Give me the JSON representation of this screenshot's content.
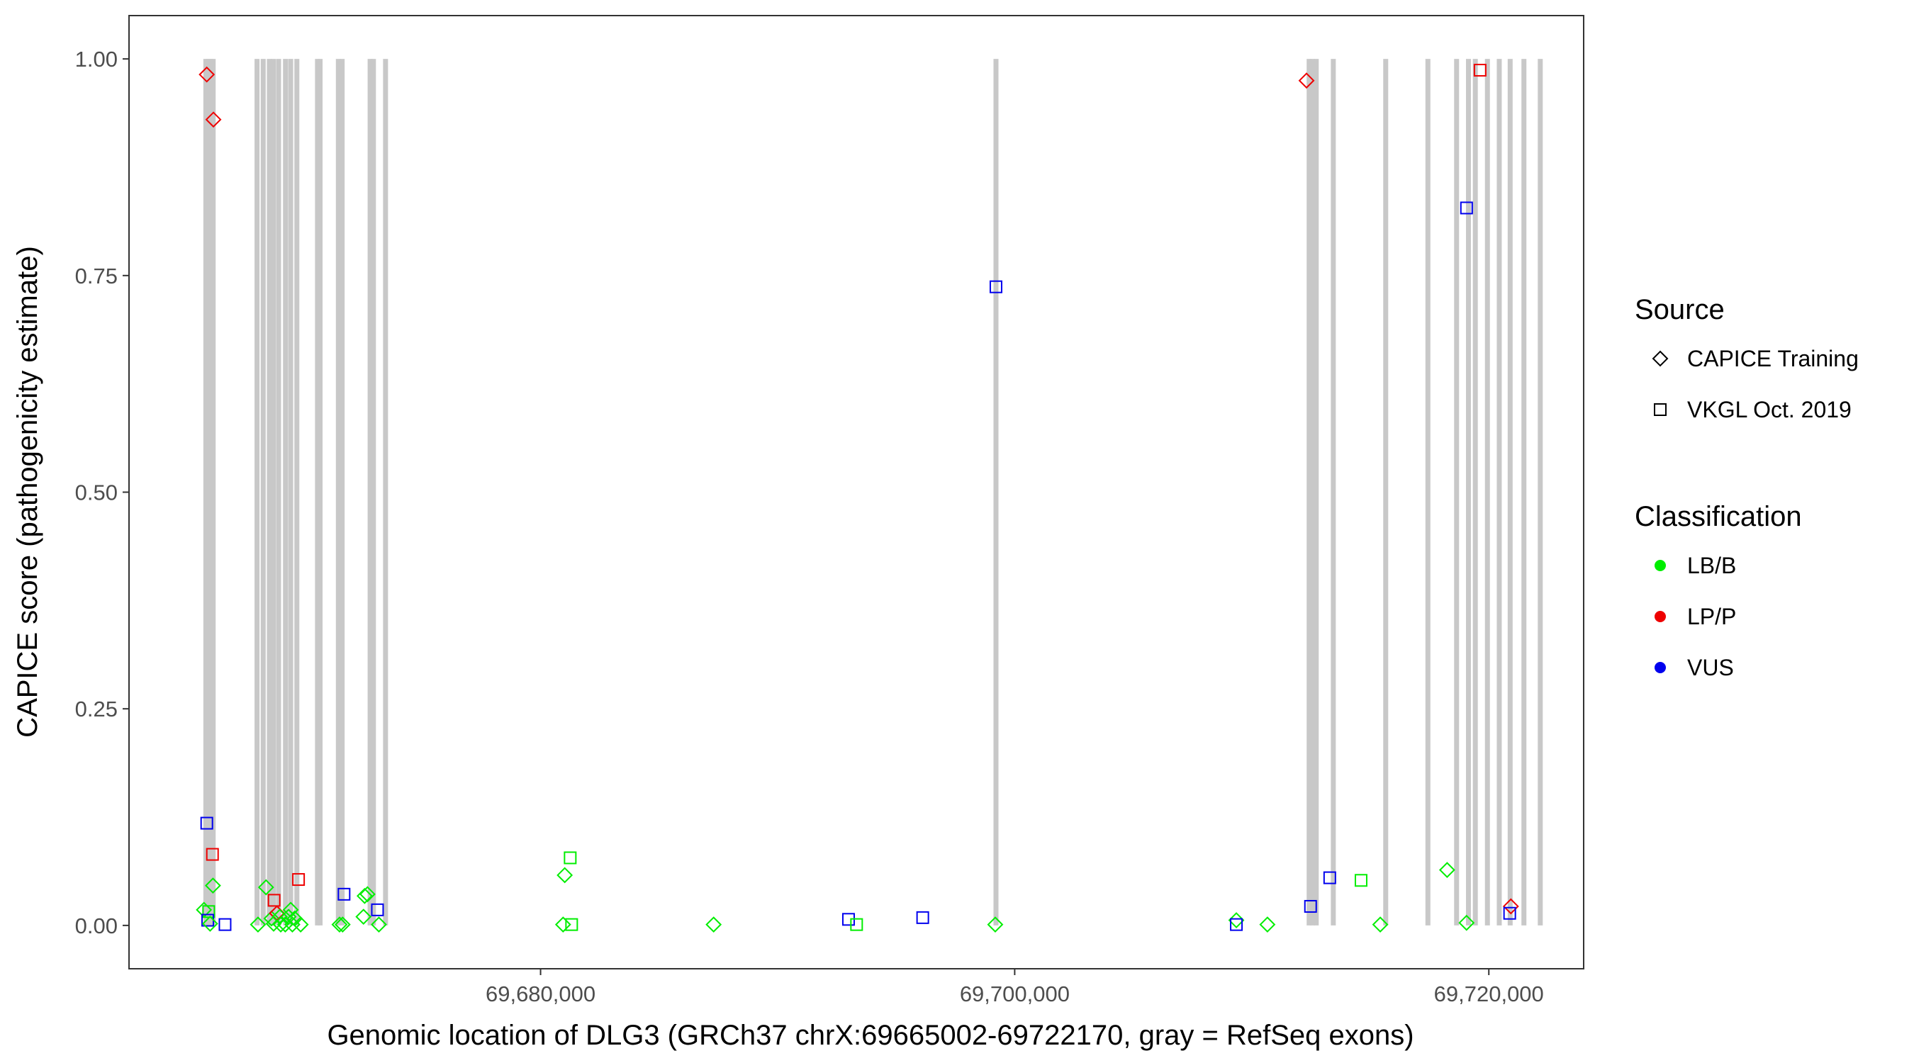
{
  "chart_data": {
    "type": "scatter",
    "title": "",
    "xlabel": "Genomic location of DLG3 (GRCh37 chrX:69665002-69722170, gray = RefSeq exons)",
    "ylabel": "CAPICE score (pathogenicity estimate)",
    "xlim": [
      69662640,
      69724000
    ],
    "ylim": [
      -0.05,
      1.05
    ],
    "x_ticks": [
      69680000,
      69700000,
      69720000
    ],
    "x_tick_labels": [
      "69,680,000",
      "69,700,000",
      "69,720,000"
    ],
    "y_ticks": [
      0,
      0.25,
      0.5,
      0.75,
      1.0
    ],
    "y_tick_labels": [
      "0.00",
      "0.25",
      "0.50",
      "0.75",
      "1.00"
    ],
    "grid": false,
    "legend_position": "right",
    "exons": [
      69665880,
      69665990,
      69666080,
      69666190,
      69668040,
      69668300,
      69668560,
      69668730,
      69668950,
      69669240,
      69669460,
      69669720,
      69670590,
      69670700,
      69671470,
      69671630,
      69672810,
      69672950,
      69673460,
      69699210,
      69712420,
      69712560,
      69712720,
      69713440,
      69715650,
      69717430,
      69718640,
      69719140,
      69719430,
      69719940,
      69720440,
      69720900,
      69721480,
      69722170
    ],
    "legend": {
      "source": {
        "title": "Source",
        "items": [
          {
            "label": "CAPICE Training",
            "shape": "diamond"
          },
          {
            "label": "VKGL Oct. 2019",
            "shape": "square"
          }
        ]
      },
      "classification": {
        "title": "Classification",
        "items": [
          {
            "label": "LB/B",
            "color": "#00ee00"
          },
          {
            "label": "LP/P",
            "color": "#ee0000"
          },
          {
            "label": "VUS",
            "color": "#0000ee"
          }
        ]
      }
    },
    "points": [
      {
        "x": 69665920,
        "y": 0.982,
        "shape": "diamond",
        "class": "LP/P"
      },
      {
        "x": 69666200,
        "y": 0.93,
        "shape": "diamond",
        "class": "LP/P"
      },
      {
        "x": 69665920,
        "y": 0.118,
        "shape": "square",
        "class": "VUS"
      },
      {
        "x": 69666160,
        "y": 0.082,
        "shape": "square",
        "class": "LP/P"
      },
      {
        "x": 69666180,
        "y": 0.046,
        "shape": "diamond",
        "class": "LB/B"
      },
      {
        "x": 69665800,
        "y": 0.018,
        "shape": "diamond",
        "class": "LB/B"
      },
      {
        "x": 69666000,
        "y": 0.016,
        "shape": "square",
        "class": "LB/B"
      },
      {
        "x": 69665960,
        "y": 0.006,
        "shape": "square",
        "class": "VUS"
      },
      {
        "x": 69666060,
        "y": 0.002,
        "shape": "diamond",
        "class": "LB/B"
      },
      {
        "x": 69666690,
        "y": 0.001,
        "shape": "square",
        "class": "VUS"
      },
      {
        "x": 69668080,
        "y": 0.001,
        "shape": "diamond",
        "class": "LB/B"
      },
      {
        "x": 69668420,
        "y": 0.044,
        "shape": "diamond",
        "class": "LB/B"
      },
      {
        "x": 69668760,
        "y": 0.029,
        "shape": "square",
        "class": "LP/P"
      },
      {
        "x": 69668650,
        "y": 0.008,
        "shape": "diamond",
        "class": "LB/B"
      },
      {
        "x": 69668740,
        "y": 0.002,
        "shape": "diamond",
        "class": "LB/B"
      },
      {
        "x": 69668880,
        "y": 0.014,
        "shape": "diamond",
        "class": "LP/P"
      },
      {
        "x": 69669000,
        "y": 0.01,
        "shape": "diamond",
        "class": "LB/B"
      },
      {
        "x": 69669040,
        "y": 0.001,
        "shape": "diamond",
        "class": "LB/B"
      },
      {
        "x": 69669230,
        "y": 0.001,
        "shape": "diamond",
        "class": "LB/B"
      },
      {
        "x": 69669370,
        "y": 0.01,
        "shape": "diamond",
        "class": "LB/B"
      },
      {
        "x": 69669460,
        "y": 0.018,
        "shape": "diamond",
        "class": "LB/B"
      },
      {
        "x": 69669530,
        "y": 0.001,
        "shape": "diamond",
        "class": "LB/B"
      },
      {
        "x": 69669630,
        "y": 0.008,
        "shape": "diamond",
        "class": "LB/B"
      },
      {
        "x": 69669790,
        "y": 0.053,
        "shape": "square",
        "class": "LP/P"
      },
      {
        "x": 69669880,
        "y": 0.001,
        "shape": "diamond",
        "class": "LB/B"
      },
      {
        "x": 69671520,
        "y": 0.001,
        "shape": "diamond",
        "class": "LB/B"
      },
      {
        "x": 69671650,
        "y": 0.001,
        "shape": "diamond",
        "class": "LB/B"
      },
      {
        "x": 69671710,
        "y": 0.036,
        "shape": "square",
        "class": "VUS"
      },
      {
        "x": 69672580,
        "y": 0.034,
        "shape": "diamond",
        "class": "LB/B"
      },
      {
        "x": 69672700,
        "y": 0.036,
        "shape": "diamond",
        "class": "LB/B"
      },
      {
        "x": 69672530,
        "y": 0.01,
        "shape": "diamond",
        "class": "LB/B"
      },
      {
        "x": 69673120,
        "y": 0.018,
        "shape": "square",
        "class": "VUS"
      },
      {
        "x": 69673180,
        "y": 0.001,
        "shape": "diamond",
        "class": "LB/B"
      },
      {
        "x": 69681020,
        "y": 0.058,
        "shape": "diamond",
        "class": "LB/B"
      },
      {
        "x": 69681250,
        "y": 0.078,
        "shape": "square",
        "class": "LB/B"
      },
      {
        "x": 69680950,
        "y": 0.001,
        "shape": "diamond",
        "class": "LB/B"
      },
      {
        "x": 69681310,
        "y": 0.001,
        "shape": "square",
        "class": "LB/B"
      },
      {
        "x": 69687300,
        "y": 0.001,
        "shape": "diamond",
        "class": "LB/B"
      },
      {
        "x": 69692990,
        "y": 0.007,
        "shape": "square",
        "class": "VUS"
      },
      {
        "x": 69693330,
        "y": 0.001,
        "shape": "square",
        "class": "LB/B"
      },
      {
        "x": 69696120,
        "y": 0.009,
        "shape": "square",
        "class": "VUS"
      },
      {
        "x": 69699210,
        "y": 0.737,
        "shape": "square",
        "class": "VUS"
      },
      {
        "x": 69699180,
        "y": 0.001,
        "shape": "diamond",
        "class": "LB/B"
      },
      {
        "x": 69709350,
        "y": 0.006,
        "shape": "diamond",
        "class": "LB/B"
      },
      {
        "x": 69709350,
        "y": 0.001,
        "shape": "square",
        "class": "VUS"
      },
      {
        "x": 69710660,
        "y": 0.001,
        "shape": "diamond",
        "class": "LB/B"
      },
      {
        "x": 69712310,
        "y": 0.975,
        "shape": "diamond",
        "class": "LP/P"
      },
      {
        "x": 69712480,
        "y": 0.022,
        "shape": "square",
        "class": "VUS"
      },
      {
        "x": 69713290,
        "y": 0.055,
        "shape": "square",
        "class": "VUS"
      },
      {
        "x": 69714610,
        "y": 0.052,
        "shape": "square",
        "class": "LB/B"
      },
      {
        "x": 69715420,
        "y": 0.001,
        "shape": "diamond",
        "class": "LB/B"
      },
      {
        "x": 69718240,
        "y": 0.064,
        "shape": "diamond",
        "class": "LB/B"
      },
      {
        "x": 69719060,
        "y": 0.003,
        "shape": "diamond",
        "class": "LB/B"
      },
      {
        "x": 69719060,
        "y": 0.828,
        "shape": "square",
        "class": "VUS"
      },
      {
        "x": 69719630,
        "y": 0.987,
        "shape": "square",
        "class": "LP/P"
      },
      {
        "x": 69720930,
        "y": 0.022,
        "shape": "diamond",
        "class": "LP/P"
      },
      {
        "x": 69720880,
        "y": 0.014,
        "shape": "square",
        "class": "VUS"
      }
    ]
  }
}
